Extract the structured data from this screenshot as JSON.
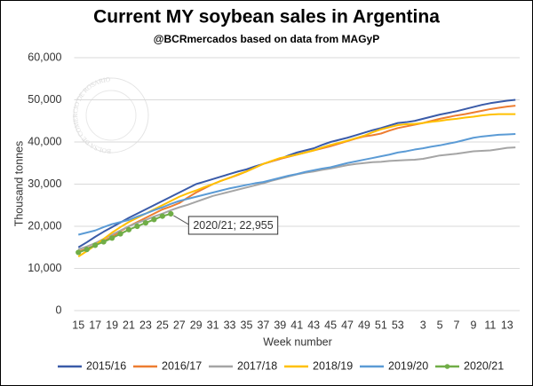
{
  "chart_data": {
    "type": "line",
    "title": "Current MY soybean sales in Argentina",
    "subtitle": "@BCRmercados based on data from MAGyP",
    "watermark": "BOLSA DE COMERCIO DE ROSARIO",
    "y_label": "Thousand tonnes",
    "x_label": "Week number",
    "annotation": "2020/21; 22,955",
    "categories": [
      "15",
      null,
      "17",
      null,
      "19",
      null,
      "21",
      null,
      "23",
      null,
      "25",
      null,
      "27",
      null,
      "29",
      null,
      "31",
      null,
      "33",
      null,
      "35",
      null,
      "37",
      null,
      "39",
      null,
      "41",
      null,
      "43",
      null,
      "45",
      null,
      "47",
      null,
      "49",
      null,
      "51",
      null,
      "53",
      null,
      null,
      "3",
      null,
      "5",
      null,
      "7",
      null,
      "9",
      null,
      "11",
      null,
      "13",
      null
    ],
    "ylim": [
      0,
      60000
    ],
    "yticks": [
      0,
      {
        "value": 10000,
        "label": "10,000"
      },
      {
        "value": 20000,
        "label": "20,000"
      },
      {
        "value": 30000,
        "label": "30,000"
      },
      {
        "value": 40000,
        "label": "40,000"
      },
      {
        "value": 50000,
        "label": "50,000"
      },
      {
        "value": 60000,
        "label": "60,000"
      }
    ],
    "grid": true,
    "legend": "bottom",
    "series": [
      {
        "name": "2015/16",
        "color": "#3a5ba8",
        "values": [
          15000,
          16200,
          17500,
          18700,
          19800,
          20900,
          22000,
          23000,
          24000,
          25000,
          26000,
          27000,
          28000,
          29000,
          30000,
          30600,
          31200,
          31800,
          32400,
          33000,
          33500,
          34200,
          34800,
          35400,
          36000,
          36800,
          37500,
          38000,
          38500,
          39300,
          40000,
          40500,
          41000,
          41600,
          42200,
          42800,
          43300,
          43900,
          44500,
          44700,
          45000,
          45500,
          46000,
          46500,
          46900,
          47300,
          47800,
          48300,
          48800,
          49200,
          49500,
          49800,
          50000
        ]
      },
      {
        "name": "2016/17",
        "color": "#ed7d31",
        "values": [
          14000,
          14700,
          15500,
          16500,
          17500,
          18800,
          20000,
          21000,
          22000,
          23000,
          24000,
          24700,
          25500,
          26800,
          28000,
          29000,
          30000,
          30800,
          31500,
          32200,
          33000,
          33900,
          34800,
          35400,
          36000,
          36500,
          37000,
          37500,
          38000,
          38500,
          39000,
          39600,
          40200,
          40800,
          41300,
          41600,
          42000,
          42700,
          43300,
          43700,
          44100,
          44500,
          45000,
          45500,
          45900,
          46300,
          46600,
          47000,
          47400,
          47800,
          48100,
          48400,
          48600
        ]
      },
      {
        "name": "2017/18",
        "color": "#a5a5a5",
        "values": [
          14500,
          15200,
          16000,
          17000,
          18000,
          19000,
          20000,
          20800,
          21500,
          22300,
          23000,
          23800,
          24500,
          25100,
          25800,
          26500,
          27200,
          27700,
          28200,
          28700,
          29200,
          29700,
          30200,
          30800,
          31300,
          31800,
          32300,
          32700,
          33000,
          33400,
          33700,
          34100,
          34500,
          34800,
          35000,
          35200,
          35300,
          35500,
          35600,
          35700,
          35800,
          36000,
          36400,
          36800,
          37000,
          37200,
          37500,
          37800,
          37900,
          38000,
          38300,
          38600,
          38700
        ]
      },
      {
        "name": "2018/19",
        "color": "#ffc000",
        "values": [
          12800,
          14100,
          15500,
          17000,
          18500,
          19800,
          21000,
          22000,
          23000,
          24000,
          25000,
          26000,
          27000,
          27800,
          28500,
          29300,
          30000,
          30800,
          31500,
          32300,
          33000,
          33900,
          34800,
          35500,
          36200,
          36600,
          37000,
          37500,
          38000,
          38700,
          39300,
          39800,
          40300,
          40900,
          41500,
          42300,
          43000,
          43500,
          44000,
          44200,
          44300,
          44500,
          44800,
          45000,
          45300,
          45500,
          45800,
          46000,
          46300,
          46500,
          46600,
          46600,
          46600
        ]
      },
      {
        "name": "2019/20",
        "color": "#5b9bd5",
        "values": [
          18000,
          18500,
          19000,
          19800,
          20500,
          21000,
          21500,
          22300,
          23000,
          23800,
          24500,
          25300,
          26000,
          26500,
          27000,
          27500,
          28000,
          28500,
          29000,
          29400,
          29800,
          30200,
          30500,
          31000,
          31500,
          32000,
          32400,
          32900,
          33300,
          33700,
          34000,
          34500,
          35000,
          35400,
          35800,
          36200,
          36600,
          37000,
          37500,
          37800,
          38200,
          38500,
          38900,
          39200,
          39600,
          40000,
          40500,
          41000,
          41300,
          41500,
          41700,
          41800,
          41900
        ]
      },
      {
        "name": "2020/21",
        "color": "#70ad47",
        "markers": true,
        "values": [
          13800,
          14500,
          15500,
          16300,
          17200,
          18200,
          19200,
          20000,
          20800,
          21600,
          22400,
          22955,
          null,
          null,
          null,
          null,
          null,
          null,
          null,
          null,
          null,
          null,
          null,
          null,
          null,
          null,
          null,
          null,
          null,
          null,
          null,
          null,
          null,
          null,
          null,
          null,
          null,
          null,
          null,
          null,
          null,
          null,
          null,
          null,
          null,
          null,
          null,
          null,
          null,
          null,
          null,
          null,
          null
        ]
      }
    ]
  }
}
